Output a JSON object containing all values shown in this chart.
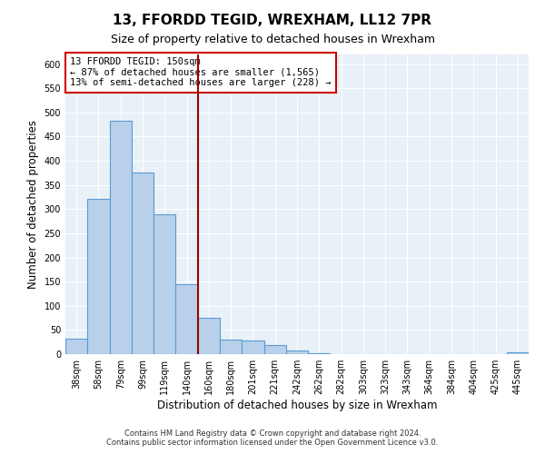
{
  "title": "13, FFORDD TEGID, WREXHAM, LL12 7PR",
  "subtitle": "Size of property relative to detached houses in Wrexham",
  "xlabel": "Distribution of detached houses by size in Wrexham",
  "ylabel": "Number of detached properties",
  "bar_labels": [
    "38sqm",
    "58sqm",
    "79sqm",
    "99sqm",
    "119sqm",
    "140sqm",
    "160sqm",
    "180sqm",
    "201sqm",
    "221sqm",
    "242sqm",
    "262sqm",
    "282sqm",
    "303sqm",
    "323sqm",
    "343sqm",
    "364sqm",
    "384sqm",
    "404sqm",
    "425sqm",
    "445sqm"
  ],
  "bar_values": [
    32,
    322,
    483,
    375,
    290,
    145,
    75,
    30,
    28,
    18,
    7,
    1,
    0,
    0,
    0,
    0,
    0,
    0,
    0,
    0,
    4
  ],
  "bar_color": "#b8d0ea",
  "bar_edge_color": "#5b9bd5",
  "background_color": "#e8f0f8",
  "vline_color": "#990000",
  "annotation_title": "13 FFORDD TEGID: 150sqm",
  "annotation_line1": "← 87% of detached houses are smaller (1,565)",
  "annotation_line2": "13% of semi-detached houses are larger (228) →",
  "annotation_box_color": "#ffffff",
  "annotation_box_edge": "#cc0000",
  "ylim": [
    0,
    620
  ],
  "yticks": [
    0,
    50,
    100,
    150,
    200,
    250,
    300,
    350,
    400,
    450,
    500,
    550,
    600
  ],
  "footer1": "Contains HM Land Registry data © Crown copyright and database right 2024.",
  "footer2": "Contains public sector information licensed under the Open Government Licence v3.0.",
  "title_fontsize": 11,
  "subtitle_fontsize": 9,
  "axis_label_fontsize": 8.5,
  "tick_fontsize": 7
}
